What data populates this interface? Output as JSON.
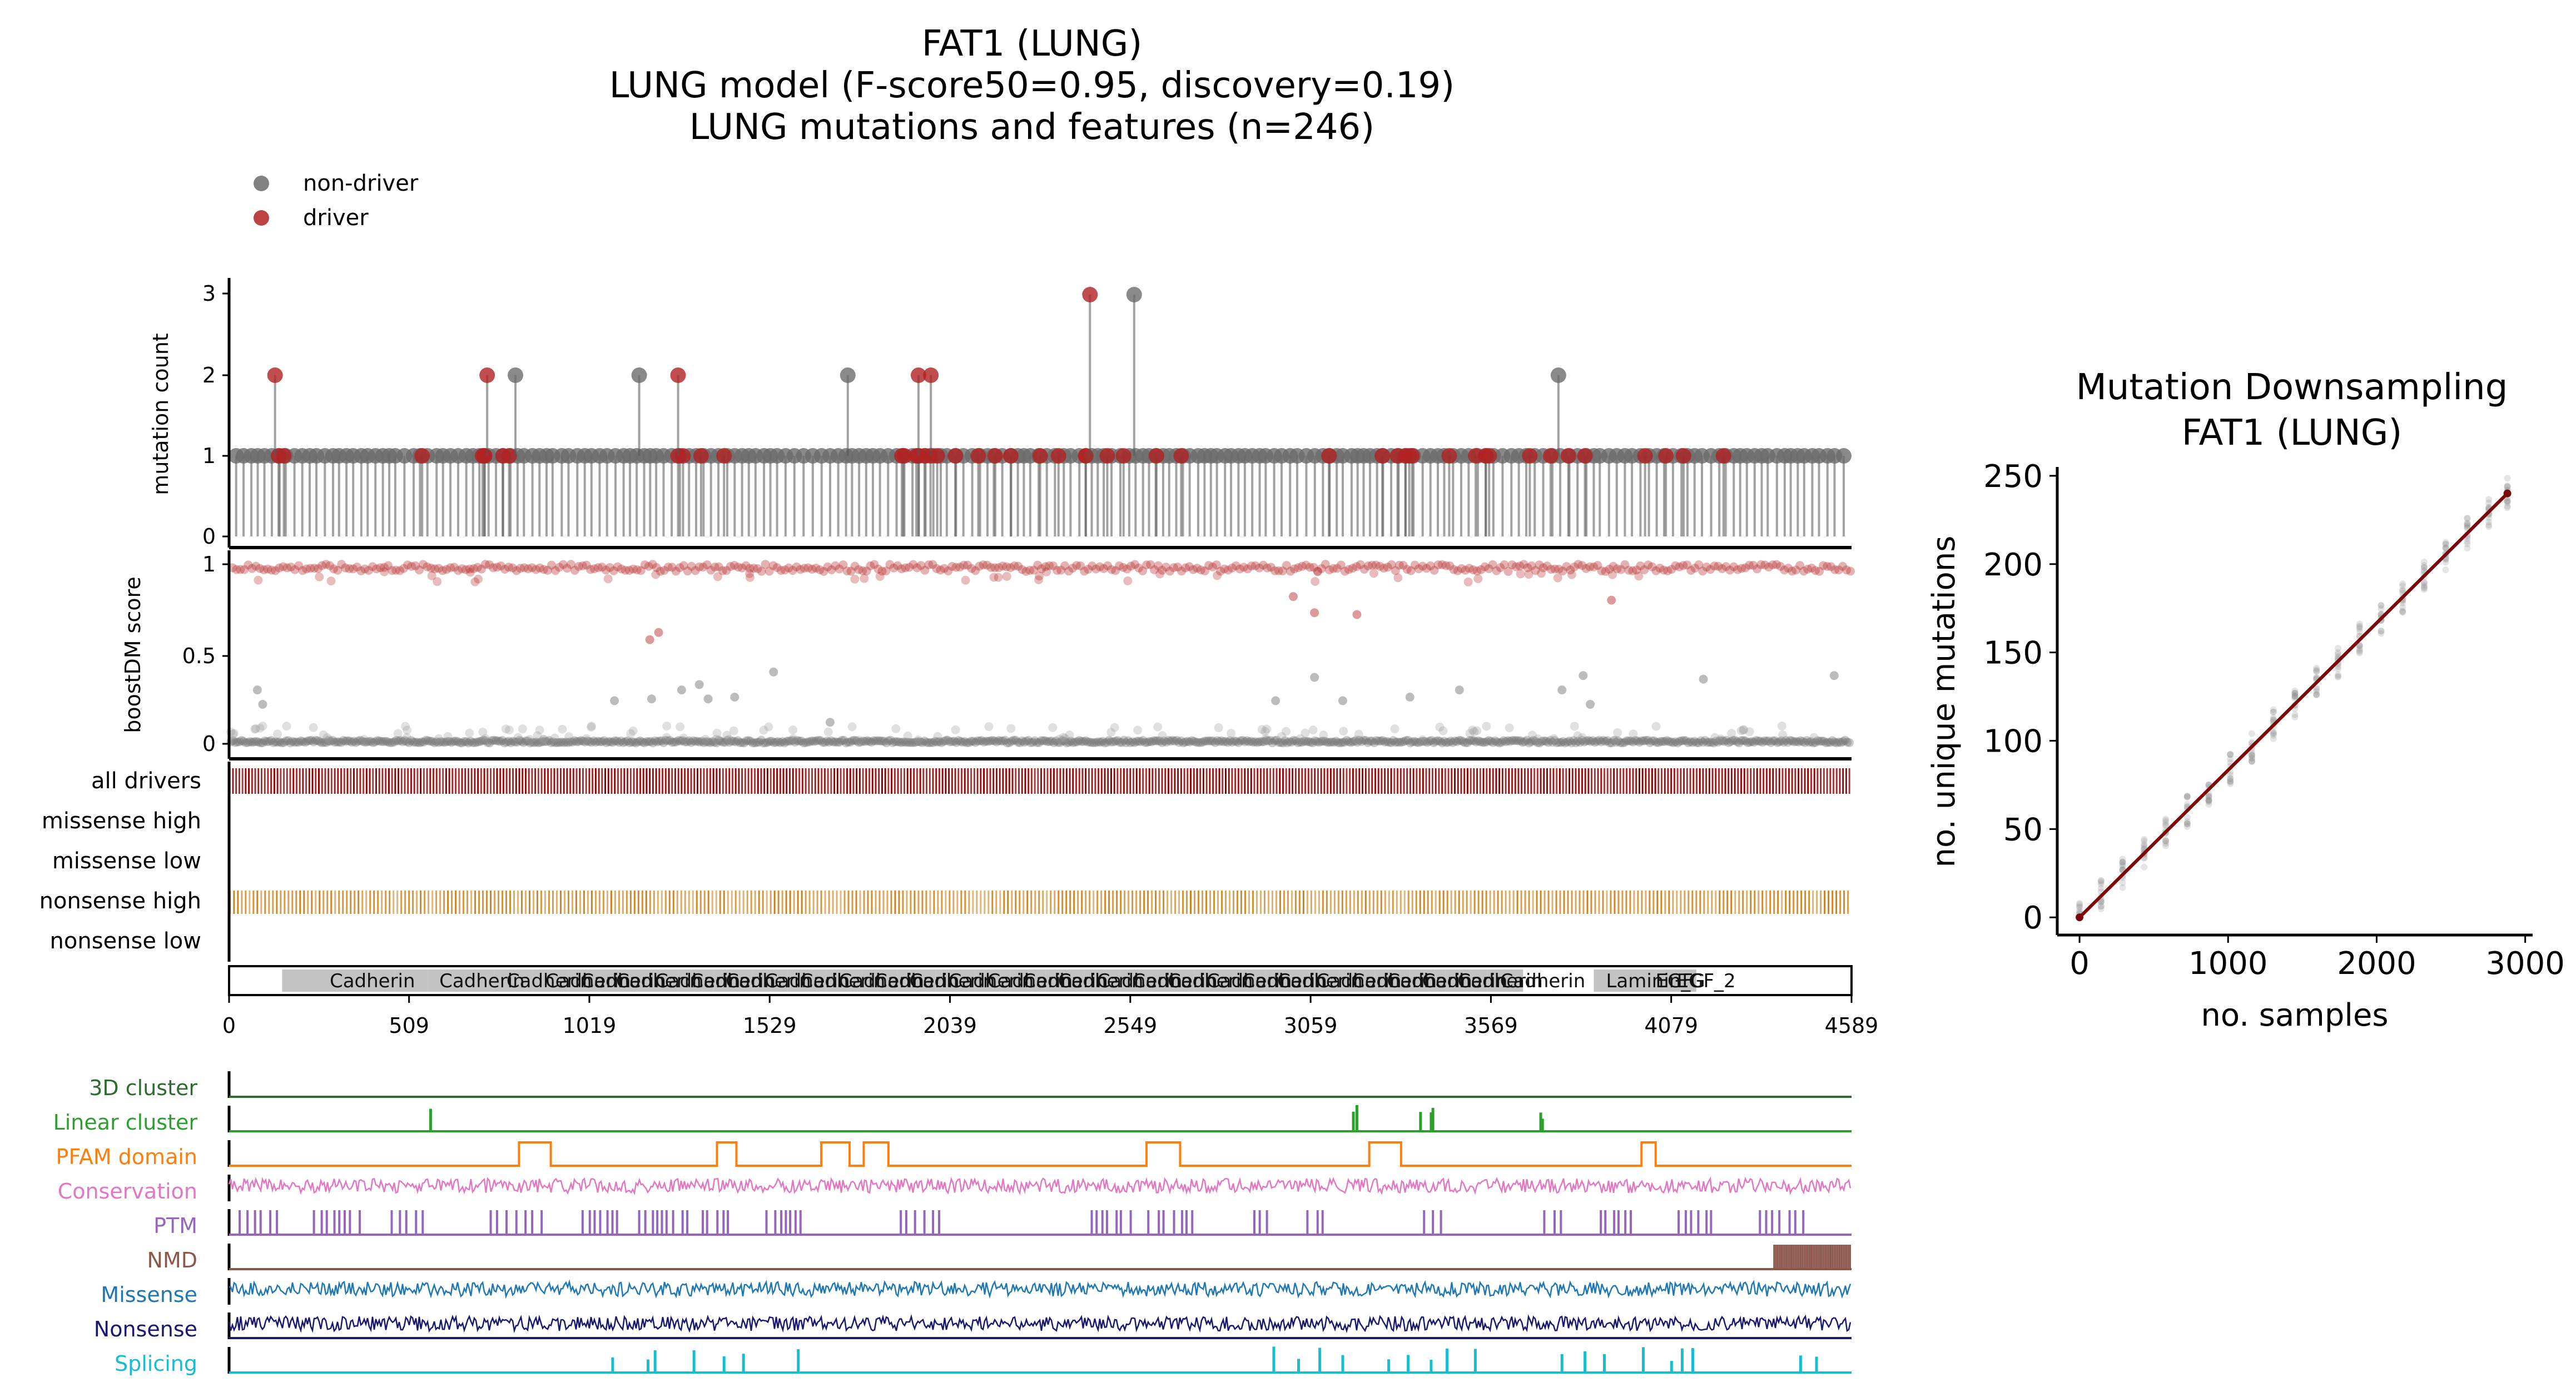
{
  "title_lines": [
    "FAT1 (LUNG)",
    "LUNG model (F-score50=0.95, discovery=0.19)",
    "LUNG mutations and features (n=246)"
  ],
  "legend": [
    {
      "label": "non-driver",
      "color": "#6b6b6b"
    },
    {
      "label": "driver",
      "color": "#b22222"
    }
  ],
  "colors": {
    "driver": "#b22222",
    "non_driver": "#6b6b6b",
    "all_drivers": "#8b0000",
    "nonsense_high": "#c98218",
    "domain_fill": "#bdbdbd",
    "fit_line": "#7a0a0a"
  },
  "chart_data": [
    {
      "type": "lollipop",
      "name": "mutation_counts",
      "ylabel": "mutation count",
      "ylim": [
        0,
        3
      ],
      "yticks": [
        "0",
        "1",
        "2",
        "3"
      ],
      "x_range": [
        0,
        4589
      ],
      "driver_positions": [
        140,
        155,
        546,
        717,
        722,
        723,
        775,
        792,
        1270,
        1284,
        1335,
        1400,
        1903,
        1910,
        1944,
        1951,
        1967,
        1984,
        2003,
        2054,
        2119,
        2167,
        2211,
        2294,
        2346,
        2423,
        2484,
        2530,
        2623,
        2693,
        3111,
        3262,
        3305,
        3327,
        3338,
        3346,
        3451,
        3526,
        3554,
        3564,
        3679,
        3738,
        3788,
        3835,
        4005,
        4064,
        4114,
        4227
      ],
      "count2_positions": [
        {
          "x": 130,
          "driver": true
        },
        {
          "x": 730,
          "driver": true
        },
        {
          "x": 810,
          "driver": false
        },
        {
          "x": 1160,
          "driver": false
        },
        {
          "x": 1270,
          "driver": true
        },
        {
          "x": 1750,
          "driver": false
        },
        {
          "x": 1950,
          "driver": true
        },
        {
          "x": 1985,
          "driver": true
        },
        {
          "x": 3760,
          "driver": false
        }
      ],
      "count3_positions": [
        {
          "x": 2435,
          "driver": true
        },
        {
          "x": 2560,
          "driver": false
        }
      ]
    },
    {
      "type": "scatter",
      "name": "boostdm_score",
      "ylabel": "boostDM score",
      "ylim": [
        0,
        1
      ],
      "yticks": [
        "0",
        "0.5",
        "1"
      ],
      "mid_points": [
        {
          "x": 80,
          "y": 0.3,
          "driver": false
        },
        {
          "x": 95,
          "y": 0.22,
          "driver": false
        },
        {
          "x": 1190,
          "y": 0.58,
          "driver": true
        },
        {
          "x": 1215,
          "y": 0.62,
          "driver": true
        },
        {
          "x": 1090,
          "y": 0.24,
          "driver": false
        },
        {
          "x": 1195,
          "y": 0.25,
          "driver": false
        },
        {
          "x": 1280,
          "y": 0.3,
          "driver": false
        },
        {
          "x": 1330,
          "y": 0.33,
          "driver": false
        },
        {
          "x": 1355,
          "y": 0.25,
          "driver": false
        },
        {
          "x": 1430,
          "y": 0.26,
          "driver": false
        },
        {
          "x": 1540,
          "y": 0.4,
          "driver": false
        },
        {
          "x": 1700,
          "y": 0.12,
          "driver": false
        },
        {
          "x": 3010,
          "y": 0.82,
          "driver": true
        },
        {
          "x": 3070,
          "y": 0.73,
          "driver": true
        },
        {
          "x": 3190,
          "y": 0.72,
          "driver": true
        },
        {
          "x": 2960,
          "y": 0.24,
          "driver": false
        },
        {
          "x": 3070,
          "y": 0.37,
          "driver": false
        },
        {
          "x": 3150,
          "y": 0.24,
          "driver": false
        },
        {
          "x": 3340,
          "y": 0.26,
          "driver": false
        },
        {
          "x": 3480,
          "y": 0.3,
          "driver": false
        },
        {
          "x": 3770,
          "y": 0.3,
          "driver": false
        },
        {
          "x": 3830,
          "y": 0.38,
          "driver": false
        },
        {
          "x": 3850,
          "y": 0.22,
          "driver": false
        },
        {
          "x": 4170,
          "y": 0.36,
          "driver": false
        },
        {
          "x": 4540,
          "y": 0.38,
          "driver": false
        },
        {
          "x": 3910,
          "y": 0.8,
          "driver": true
        }
      ]
    },
    {
      "type": "tracks",
      "name": "mutation_type_tracks",
      "rows": [
        "all drivers",
        "missense high",
        "missense low",
        "nonsense high",
        "nonsense low"
      ]
    },
    {
      "type": "domains",
      "name": "pfam_domains",
      "xticks": [
        0,
        509,
        1019,
        1529,
        2039,
        2549,
        3059,
        3569,
        4079,
        4589
      ],
      "domains": [
        {
          "start": 150,
          "end": 250,
          "label": ""
        },
        {
          "start": 250,
          "end": 470,
          "label": "Cadherin"
        },
        {
          "start": 470,
          "end": 560,
          "label": ""
        },
        {
          "start": 560,
          "end": 750,
          "label": "Cadherin"
        },
        {
          "start": 750,
          "end": 860,
          "label": "Cadherin"
        },
        {
          "start": 860,
          "end": 960,
          "label": "Cadherin"
        },
        {
          "start": 960,
          "end": 1060,
          "label": "Cadherin"
        },
        {
          "start": 1060,
          "end": 1170,
          "label": "Cadherin"
        },
        {
          "start": 1170,
          "end": 1270,
          "label": "Cadherin"
        },
        {
          "start": 1270,
          "end": 1370,
          "label": "Cadherin"
        },
        {
          "start": 1370,
          "end": 1480,
          "label": "Cadherin"
        },
        {
          "start": 1480,
          "end": 1580,
          "label": "Cadherin"
        },
        {
          "start": 1580,
          "end": 1690,
          "label": "Cadherin"
        },
        {
          "start": 1690,
          "end": 1790,
          "label": "Cadherin"
        },
        {
          "start": 1790,
          "end": 1890,
          "label": "Cadherin"
        },
        {
          "start": 1890,
          "end": 2000,
          "label": "Cadherin"
        },
        {
          "start": 2000,
          "end": 2110,
          "label": "Cadherin"
        },
        {
          "start": 2110,
          "end": 2210,
          "label": "Cadherin"
        },
        {
          "start": 2210,
          "end": 2310,
          "label": "Cadherin"
        },
        {
          "start": 2310,
          "end": 2420,
          "label": "Cadherin"
        },
        {
          "start": 2420,
          "end": 2520,
          "label": "Cadherin"
        },
        {
          "start": 2520,
          "end": 2620,
          "label": "Cadherin"
        },
        {
          "start": 2620,
          "end": 2730,
          "label": "Cadherin"
        },
        {
          "start": 2730,
          "end": 2830,
          "label": "Cadherin"
        },
        {
          "start": 2830,
          "end": 2930,
          "label": "Cadherin"
        },
        {
          "start": 2930,
          "end": 3040,
          "label": "Cadherin"
        },
        {
          "start": 3040,
          "end": 3140,
          "label": "Cadherin"
        },
        {
          "start": 3140,
          "end": 3240,
          "label": "Cadherin"
        },
        {
          "start": 3240,
          "end": 3340,
          "label": "Cadherin"
        },
        {
          "start": 3340,
          "end": 3440,
          "label": "Cadherin"
        },
        {
          "start": 3440,
          "end": 3560,
          "label": "Cadherin"
        },
        {
          "start": 3560,
          "end": 3660,
          "label": "Cadherin"
        },
        {
          "start": 3860,
          "end": 4000,
          "label": "Laminin_G"
        },
        {
          "start": 4000,
          "end": 4060,
          "label": "EGF"
        },
        {
          "start": 4060,
          "end": 4150,
          "label": "EGF_2"
        }
      ]
    },
    {
      "type": "tracks",
      "name": "feature_tracks",
      "tracks": [
        {
          "label": "3D cluster",
          "color": "#2e6b2e",
          "kind": "flat"
        },
        {
          "label": "Linear cluster",
          "color": "#2ca02c",
          "kind": "spikes",
          "positions": [
            570,
            3180,
            3190,
            3370,
            3400,
            3405,
            3710,
            3715
          ]
        },
        {
          "label": "PFAM domain",
          "color": "#ff7f0e",
          "kind": "boxes",
          "intervals": [
            [
              820,
              910
            ],
            [
              1380,
              1435
            ],
            [
              1675,
              1755
            ],
            [
              1795,
              1865
            ],
            [
              2595,
              2690
            ],
            [
              3225,
              3315
            ],
            [
              3995,
              4035
            ]
          ]
        },
        {
          "label": "Conservation",
          "color": "#e377c2",
          "kind": "noise"
        },
        {
          "label": "PTM",
          "color": "#9467bd",
          "kind": "bars"
        },
        {
          "label": "NMD",
          "color": "#8c564b",
          "kind": "nmd",
          "start": 4370
        },
        {
          "label": "Missense",
          "color": "#1f77b4",
          "kind": "noise"
        },
        {
          "label": "Nonsense",
          "color": "#191970",
          "kind": "noise"
        },
        {
          "label": "Splicing",
          "color": "#17becf",
          "kind": "spikes",
          "positions": [
            1085,
            1185,
            1205,
            1315,
            1400,
            1455,
            1610,
            2955,
            3025,
            3085,
            3150,
            3280,
            3335,
            3400,
            3445,
            3525,
            3770,
            3835,
            3890,
            4000,
            4080,
            4110,
            4140,
            4445,
            4490
          ]
        }
      ]
    },
    {
      "type": "line",
      "name": "mutation_downsampling",
      "title_lines": [
        "Mutation Downsampling",
        "FAT1 (LUNG)"
      ],
      "xlabel": "no. samples",
      "ylabel": "no. unique mutations",
      "xlim": [
        -150,
        3050
      ],
      "ylim": [
        -10,
        255
      ],
      "xticks": [
        0,
        1000,
        2000,
        3000
      ],
      "yticks": [
        0,
        50,
        100,
        150,
        200,
        250
      ],
      "fit_line": [
        [
          0,
          0
        ],
        [
          2880,
          240
        ]
      ],
      "replicate_columns_x": [
        0,
        145,
        290,
        435,
        580,
        725,
        870,
        1015,
        1160,
        1305,
        1450,
        1595,
        1740,
        1885,
        2030,
        2175,
        2320,
        2465,
        2610,
        2755,
        2880
      ]
    }
  ]
}
